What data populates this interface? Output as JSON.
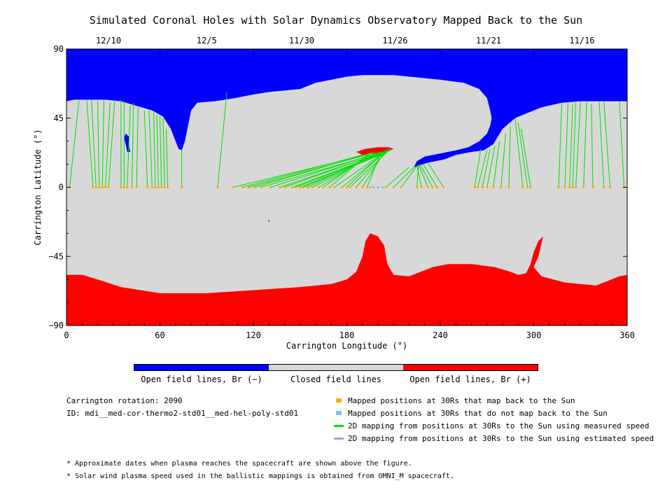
{
  "title": "Simulated Coronal Holes with Solar Dynamics Observatory Mapped Back to the Sun",
  "chart_data": {
    "type": "scatter",
    "title": "Simulated Coronal Holes with Solar Dynamics Observatory Mapped Back to the Sun",
    "xlabel": "Carrington Longitude (°)",
    "ylabel": "Carrington Latitude (°)",
    "xlim": [
      0,
      360
    ],
    "ylim": [
      -90,
      90
    ],
    "x_ticks": [
      0,
      60,
      120,
      180,
      240,
      300,
      360
    ],
    "y_ticks": [
      -90,
      -45,
      0,
      45,
      90
    ],
    "date_ticks": [
      {
        "x": 27,
        "label": "12/10"
      },
      {
        "x": 90,
        "label": "12/5"
      },
      {
        "x": 151,
        "label": "11/30"
      },
      {
        "x": 211,
        "label": "11/26"
      },
      {
        "x": 271,
        "label": "11/21"
      },
      {
        "x": 331,
        "label": "11/16"
      }
    ],
    "background_colors": {
      "open_negative": "#0000ff",
      "closed": "#d8d8d8",
      "open_positive": "#ff0000"
    },
    "north_hole": [
      [
        0,
        56
      ],
      [
        5,
        57
      ],
      [
        15,
        57
      ],
      [
        25,
        57
      ],
      [
        35,
        56
      ],
      [
        45,
        53
      ],
      [
        55,
        50
      ],
      [
        62,
        46
      ],
      [
        67,
        38
      ],
      [
        70,
        30
      ],
      [
        72,
        25
      ],
      [
        74,
        24
      ],
      [
        76,
        30
      ],
      [
        78,
        40
      ],
      [
        80,
        50
      ],
      [
        84,
        55
      ],
      [
        95,
        56
      ],
      [
        108,
        58
      ],
      [
        118,
        60
      ],
      [
        130,
        62
      ],
      [
        150,
        64
      ],
      [
        160,
        68
      ],
      [
        170,
        70
      ],
      [
        180,
        72
      ],
      [
        190,
        73
      ],
      [
        210,
        73
      ],
      [
        220,
        72
      ],
      [
        240,
        70
      ],
      [
        255,
        68
      ],
      [
        265,
        64
      ],
      [
        270,
        58
      ],
      [
        272,
        50
      ],
      [
        273,
        45
      ],
      [
        272,
        40
      ],
      [
        270,
        35
      ],
      [
        265,
        30
      ],
      [
        258,
        26
      ],
      [
        250,
        24
      ],
      [
        240,
        22
      ],
      [
        230,
        20
      ],
      [
        225,
        17
      ],
      [
        223,
        13
      ],
      [
        226,
        14
      ],
      [
        232,
        16
      ],
      [
        242,
        18
      ],
      [
        250,
        21
      ],
      [
        260,
        23
      ],
      [
        268,
        24
      ],
      [
        274,
        28
      ],
      [
        280,
        38
      ],
      [
        288,
        45
      ],
      [
        295,
        48
      ],
      [
        305,
        52
      ],
      [
        318,
        55
      ],
      [
        330,
        56
      ],
      [
        345,
        56
      ],
      [
        360,
        56
      ],
      [
        360,
        90
      ],
      [
        0,
        90
      ]
    ],
    "north_blob": [
      [
        38,
        35
      ],
      [
        40,
        33
      ],
      [
        40,
        28
      ],
      [
        41,
        23
      ],
      [
        39,
        23
      ],
      [
        38,
        28
      ],
      [
        37,
        32
      ]
    ],
    "north_red": [
      [
        186,
        23
      ],
      [
        192,
        25
      ],
      [
        200,
        26
      ],
      [
        207,
        26
      ],
      [
        210,
        25
      ],
      [
        205,
        23
      ],
      [
        198,
        22
      ],
      [
        190,
        21
      ]
    ],
    "south_hole": [
      [
        0,
        -57
      ],
      [
        10,
        -57
      ],
      [
        20,
        -60
      ],
      [
        35,
        -65
      ],
      [
        60,
        -69
      ],
      [
        90,
        -69
      ],
      [
        120,
        -67
      ],
      [
        150,
        -65
      ],
      [
        170,
        -63
      ],
      [
        180,
        -60
      ],
      [
        186,
        -55
      ],
      [
        190,
        -45
      ],
      [
        192,
        -35
      ],
      [
        195,
        -30
      ],
      [
        200,
        -32
      ],
      [
        204,
        -38
      ],
      [
        206,
        -50
      ],
      [
        210,
        -57
      ],
      [
        220,
        -58
      ],
      [
        235,
        -52
      ],
      [
        245,
        -50
      ],
      [
        260,
        -50
      ],
      [
        275,
        -52
      ],
      [
        285,
        -55
      ],
      [
        290,
        -57
      ],
      [
        295,
        -56
      ],
      [
        298,
        -50
      ],
      [
        300,
        -42
      ],
      [
        303,
        -35
      ],
      [
        306,
        -32
      ],
      [
        303,
        -45
      ],
      [
        300,
        -52
      ],
      [
        305,
        -58
      ],
      [
        320,
        -62
      ],
      [
        340,
        -64
      ],
      [
        355,
        -58
      ],
      [
        360,
        -57
      ],
      [
        360,
        -90
      ],
      [
        0,
        -90
      ]
    ],
    "south_small_red": [
      [
        130,
        -22
      ]
    ],
    "series": [
      {
        "name": "Mapped positions at 30Rs that map back to the Sun",
        "color": "#ffaa00",
        "x": [
          2,
          17,
          19,
          21,
          23,
          25,
          27,
          35,
          37,
          39,
          42,
          45,
          52,
          55,
          57,
          59,
          61,
          63,
          65,
          74,
          97,
          107,
          113,
          117,
          121,
          125,
          131,
          137,
          140,
          145,
          147,
          150,
          152,
          155,
          158,
          162,
          165,
          169,
          172,
          177,
          180,
          182,
          186,
          190,
          193,
          195,
          205,
          210,
          215,
          225,
          228,
          232,
          235,
          238,
          242,
          262,
          264,
          267,
          270,
          274,
          279,
          284,
          293,
          296,
          298,
          316,
          320,
          323,
          325,
          327,
          332,
          338,
          345,
          349,
          358
        ],
        "y": [
          0,
          0,
          0,
          0,
          0,
          0,
          0,
          0,
          0,
          0,
          0,
          0,
          0,
          0,
          0,
          0,
          0,
          0,
          0,
          0,
          0,
          0,
          0,
          0,
          0,
          0,
          0,
          0,
          0,
          0,
          0,
          0,
          0,
          0,
          0,
          0,
          0,
          0,
          0,
          0,
          0,
          0,
          0,
          0,
          0,
          0,
          0,
          0,
          0,
          0,
          0,
          0,
          0,
          0,
          0,
          0,
          0,
          0,
          0,
          0,
          0,
          0,
          0,
          0,
          0,
          0,
          0,
          0,
          0,
          0,
          0,
          0,
          0,
          0,
          0
        ]
      },
      {
        "name": "Mapped positions at 30Rs that do not map back to the Sun",
        "color": "#7fbfff",
        "x": [
          197,
          200,
          203
        ],
        "y": [
          0,
          0,
          0
        ]
      }
    ],
    "mappings": [
      [
        2,
        0,
        8,
        56
      ],
      [
        17,
        0,
        13,
        57
      ],
      [
        19,
        0,
        16,
        57
      ],
      [
        21,
        0,
        20,
        56
      ],
      [
        23,
        0,
        24,
        57
      ],
      [
        25,
        0,
        28,
        55
      ],
      [
        27,
        0,
        31,
        57
      ],
      [
        35,
        0,
        35,
        57
      ],
      [
        37,
        0,
        37,
        56
      ],
      [
        39,
        0,
        41,
        53
      ],
      [
        42,
        0,
        43,
        55
      ],
      [
        45,
        0,
        46,
        52
      ],
      [
        52,
        0,
        50,
        50
      ],
      [
        55,
        0,
        53,
        50
      ],
      [
        57,
        0,
        56,
        49
      ],
      [
        59,
        0,
        58,
        47
      ],
      [
        61,
        0,
        60,
        46
      ],
      [
        63,
        0,
        62,
        45
      ],
      [
        65,
        0,
        64,
        38
      ],
      [
        74,
        0,
        74,
        24
      ],
      [
        97,
        0,
        103,
        62
      ],
      [
        107,
        0,
        188,
        20
      ],
      [
        113,
        0,
        190,
        21
      ],
      [
        117,
        0,
        196,
        22
      ],
      [
        121,
        0,
        198,
        23
      ],
      [
        125,
        0,
        200,
        22
      ],
      [
        131,
        0,
        202,
        23
      ],
      [
        137,
        0,
        204,
        23
      ],
      [
        140,
        0,
        206,
        24
      ],
      [
        145,
        0,
        208,
        24
      ],
      [
        147,
        0,
        206,
        23
      ],
      [
        150,
        0,
        204,
        22
      ],
      [
        152,
        0,
        202,
        22
      ],
      [
        155,
        0,
        200,
        22
      ],
      [
        158,
        0,
        198,
        21
      ],
      [
        162,
        0,
        196,
        21
      ],
      [
        165,
        0,
        194,
        21
      ],
      [
        169,
        0,
        193,
        21
      ],
      [
        172,
        0,
        206,
        24
      ],
      [
        177,
        0,
        207,
        25
      ],
      [
        180,
        0,
        204,
        23
      ],
      [
        182,
        0,
        208,
        25
      ],
      [
        186,
        0,
        206,
        24
      ],
      [
        190,
        0,
        204,
        23
      ],
      [
        193,
        0,
        202,
        23
      ],
      [
        205,
        0,
        220,
        13
      ],
      [
        210,
        0,
        223,
        13
      ],
      [
        215,
        0,
        225,
        14
      ],
      [
        225,
        0,
        226,
        14
      ],
      [
        228,
        0,
        225,
        14
      ],
      [
        232,
        0,
        226,
        15
      ],
      [
        235,
        0,
        227,
        15
      ],
      [
        238,
        0,
        229,
        15
      ],
      [
        242,
        0,
        232,
        16
      ],
      [
        262,
        0,
        266,
        25
      ],
      [
        264,
        0,
        270,
        24
      ],
      [
        267,
        0,
        272,
        25
      ],
      [
        270,
        0,
        275,
        27
      ],
      [
        274,
        0,
        278,
        30
      ],
      [
        279,
        0,
        282,
        35
      ],
      [
        284,
        0,
        285,
        40
      ],
      [
        293,
        0,
        288,
        45
      ],
      [
        296,
        0,
        290,
        42
      ],
      [
        298,
        0,
        292,
        38
      ],
      [
        316,
        0,
        318,
        55
      ],
      [
        320,
        0,
        322,
        55
      ],
      [
        323,
        0,
        325,
        54
      ],
      [
        325,
        0,
        327,
        55
      ],
      [
        327,
        0,
        330,
        56
      ],
      [
        332,
        0,
        334,
        56
      ],
      [
        338,
        0,
        337,
        54
      ],
      [
        345,
        0,
        342,
        56
      ],
      [
        349,
        0,
        345,
        56
      ],
      [
        358,
        0,
        355,
        56
      ]
    ]
  },
  "colorbar": {
    "labels": [
      "Open field lines, Br (−)",
      "Closed field lines",
      "Open field lines, Br (+)"
    ],
    "colors": [
      "#0000ff",
      "#d8d8d8",
      "#ff0000"
    ]
  },
  "info": {
    "rotation": "Carrington rotation: 2090",
    "id": "ID: mdi__med-cor-thermo2-std01__med-hel-poly-std01"
  },
  "legend": [
    {
      "label": "Mapped positions at 30Rs that map back to the Sun",
      "color": "#ffaa00",
      "kind": "square"
    },
    {
      "label": "Mapped positions at 30Rs that do not map back to the Sun",
      "color": "#7fbfff",
      "kind": "square"
    },
    {
      "label": "2D mapping from positions at 30Rs to the Sun using measured speed",
      "color": "#00dd00",
      "kind": "line"
    },
    {
      "label": "2D mapping from positions at 30Rs to the Sun using estimated speed",
      "color": "#c38ef0",
      "kind": "line"
    }
  ],
  "notes": [
    "* Approximate dates when plasma reaches the spacecraft are shown above the figure.",
    "* Solar wind plasma speed used in the ballistic mappings is obtained from OMNI_M spacecraft."
  ]
}
